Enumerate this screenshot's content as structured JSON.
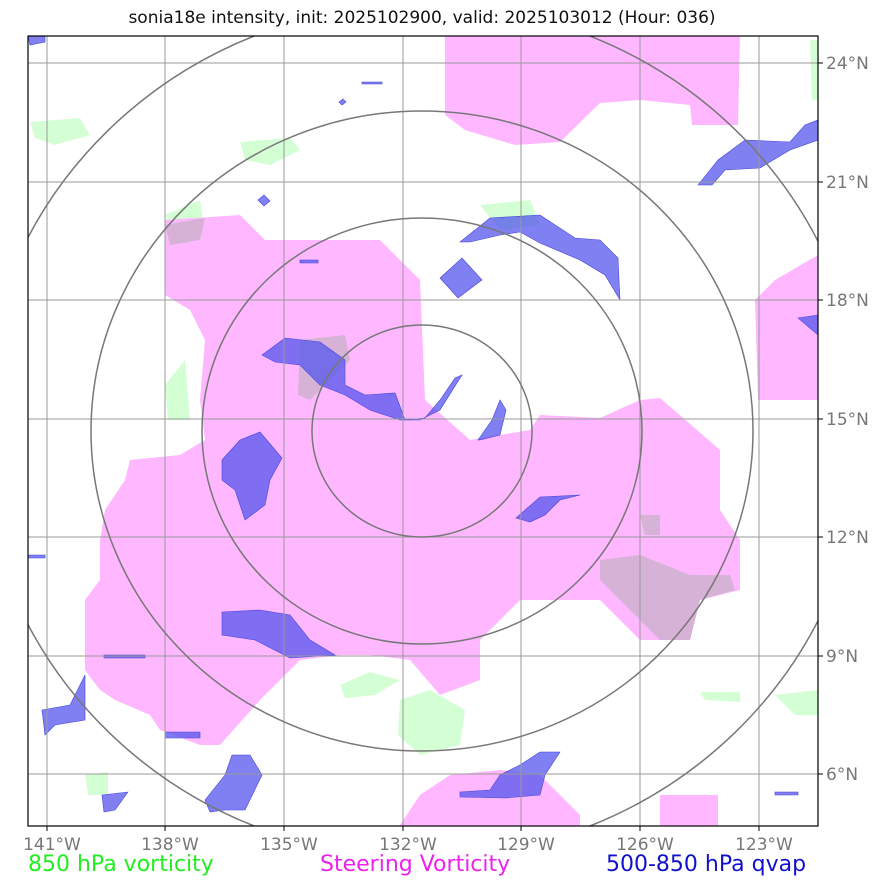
{
  "title": "sonia18e intensity, init: 2025102900, valid: 2025103012 (Hour: 036)",
  "lon_ticks": [
    "141°W",
    "138°W",
    "135°W",
    "132°W",
    "129°W",
    "126°W",
    "123°W"
  ],
  "lat_ticks": [
    "24°N",
    "21°N",
    "18°N",
    "15°N",
    "12°N",
    "9°N",
    "6°N"
  ],
  "legend": {
    "green": "850 hPa vorticity",
    "magenta": "Steering Vorticity",
    "blue": "500-850 hPa qvap"
  },
  "colors": {
    "vorticity_850": "#ccffcc",
    "steering_vorticity": "#ffb0ff",
    "qvap": "#5555ee",
    "grid": "#999999",
    "range_rings": "#777777"
  },
  "range_rings_count": 4
}
